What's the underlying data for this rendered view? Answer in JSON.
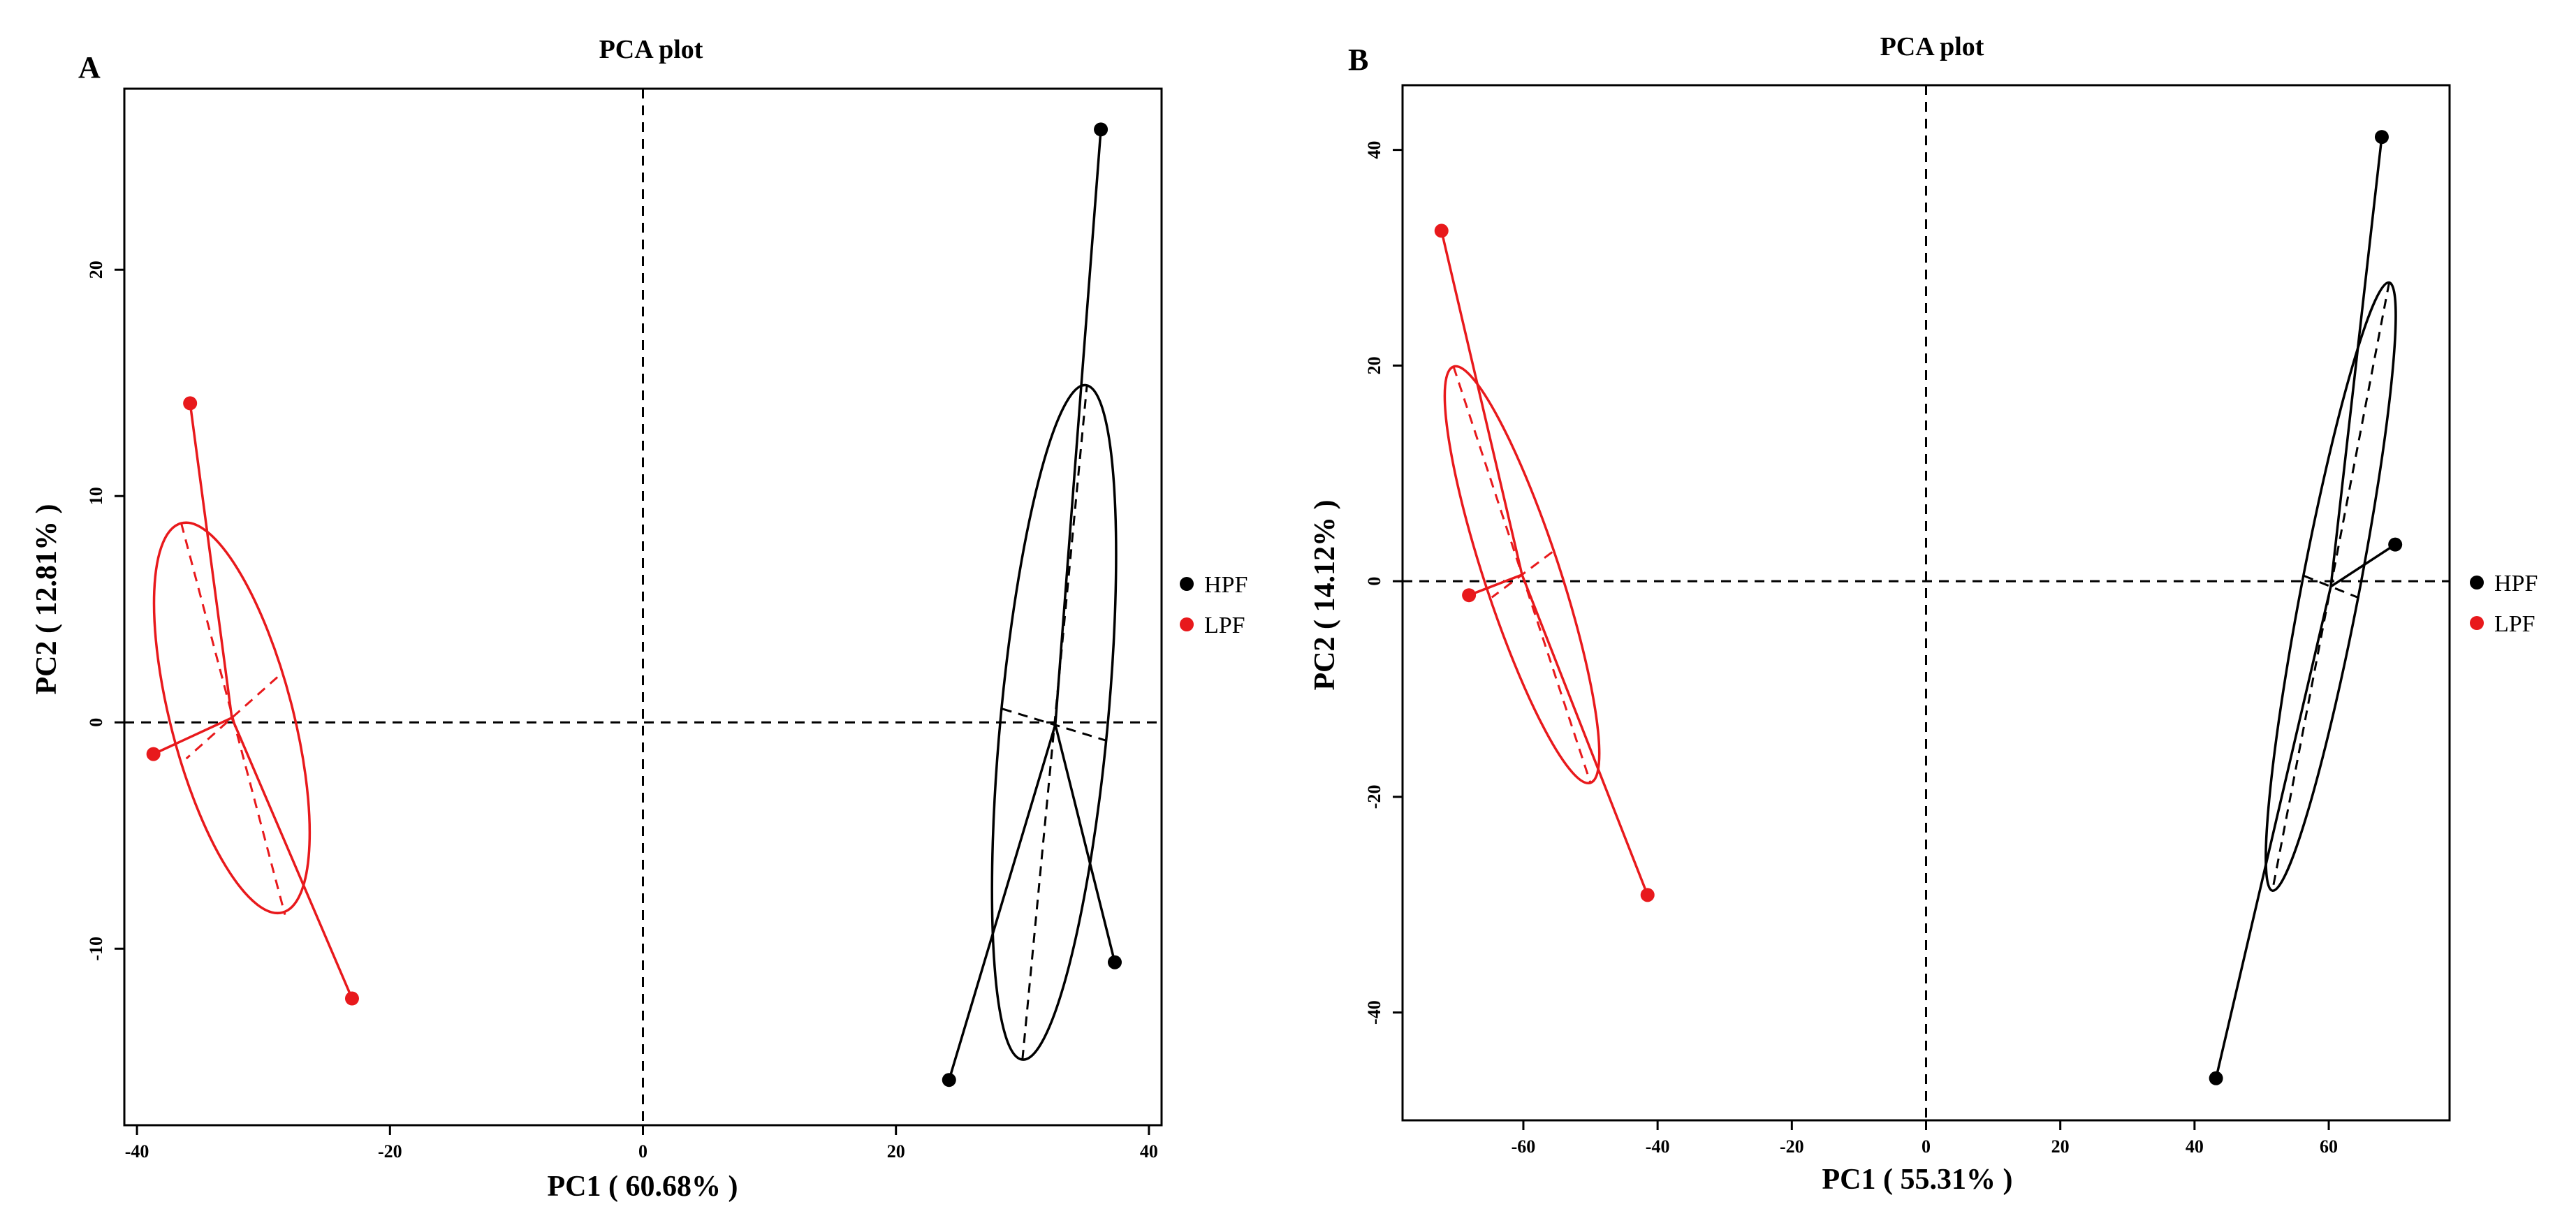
{
  "figure": {
    "colors": {
      "HPF": "#000000",
      "LPF": "#e8191c"
    }
  },
  "chart_data": [
    {
      "type": "scatter",
      "panel_label": "A",
      "title": "PCA plot",
      "xlabel": "PC1 ( 60.68% )",
      "ylabel": "PC2 ( 12.81% )",
      "xlim": [
        -41,
        41
      ],
      "ylim": [
        -17.8,
        28
      ],
      "xticks": [
        -40,
        -20,
        0,
        20,
        40
      ],
      "yticks": [
        -10,
        0,
        10,
        20
      ],
      "reference_lines": {
        "x": 0,
        "y": 0
      },
      "legend": {
        "position": "right",
        "entries": [
          "HPF",
          "LPF"
        ]
      },
      "series": [
        {
          "name": "HPF",
          "points": [
            [
              36.2,
              26.2
            ],
            [
              37.3,
              -10.6
            ],
            [
              24.2,
              -15.8
            ]
          ],
          "centroid": [
            32.6,
            -0.1
          ],
          "ellipse": {
            "center": [
              32.5,
              0.0
            ],
            "axis_a_end": [
              30.0,
              -14.9
            ],
            "axis_b_end": [
              28.4,
              0.6
            ],
            "axis_a_neg": [
              35.1,
              14.9
            ],
            "axis_b_neg": [
              36.6,
              -0.8
            ]
          }
        },
        {
          "name": "LPF",
          "points": [
            [
              -35.8,
              14.1
            ],
            [
              -38.7,
              -1.4
            ],
            [
              -23.0,
              -12.2
            ]
          ],
          "centroid": [
            -32.5,
            0.2
          ],
          "ellipse": {
            "center": [
              -32.5,
              0.2
            ],
            "axis_a_end": [
              -36.5,
              8.8
            ],
            "axis_b_end": [
              -28.9,
              2.0
            ],
            "axis_a_neg": [
              -28.3,
              -8.5
            ],
            "axis_b_neg": [
              -36.1,
              -1.6
            ]
          }
        }
      ]
    },
    {
      "type": "scatter",
      "panel_label": "B",
      "title": "PCA plot",
      "xlabel": "PC1 ( 55.31% )",
      "ylabel": "PC2 ( 14.12% )",
      "xlim": [
        -78,
        78
      ],
      "ylim": [
        -50,
        46
      ],
      "xticks": [
        -60,
        -40,
        -20,
        0,
        20,
        40,
        60
      ],
      "yticks": [
        -40,
        -20,
        0,
        20,
        40
      ],
      "reference_lines": {
        "x": 0,
        "y": 0
      },
      "legend": {
        "position": "right",
        "entries": [
          "HPF",
          "LPF"
        ]
      },
      "series": [
        {
          "name": "HPF",
          "points": [
            [
              67.9,
              41.2
            ],
            [
              69.9,
              3.4
            ],
            [
              43.2,
              -46.1
            ]
          ],
          "centroid": [
            60.3,
            -0.5
          ],
          "ellipse": {
            "center": [
              60.3,
              -0.5
            ],
            "axis_a_end": [
              69.0,
              27.7
            ],
            "axis_b_end": [
              56.3,
              0.5
            ],
            "axis_a_neg": [
              51.6,
              -28.7
            ],
            "axis_b_neg": [
              64.3,
              -1.5
            ]
          }
        },
        {
          "name": "LPF",
          "points": [
            [
              -72.2,
              32.5
            ],
            [
              -68.1,
              -1.3
            ],
            [
              -41.5,
              -29.1
            ]
          ],
          "centroid": [
            -60.2,
            0.6
          ],
          "ellipse": {
            "center": [
              -60.2,
              0.6
            ],
            "axis_a_end": [
              -70.4,
              19.9
            ],
            "axis_b_end": [
              -55.7,
              2.7
            ],
            "axis_a_neg": [
              -50.0,
              -18.7
            ],
            "axis_b_neg": [
              -64.7,
              -1.5
            ]
          }
        }
      ]
    }
  ]
}
